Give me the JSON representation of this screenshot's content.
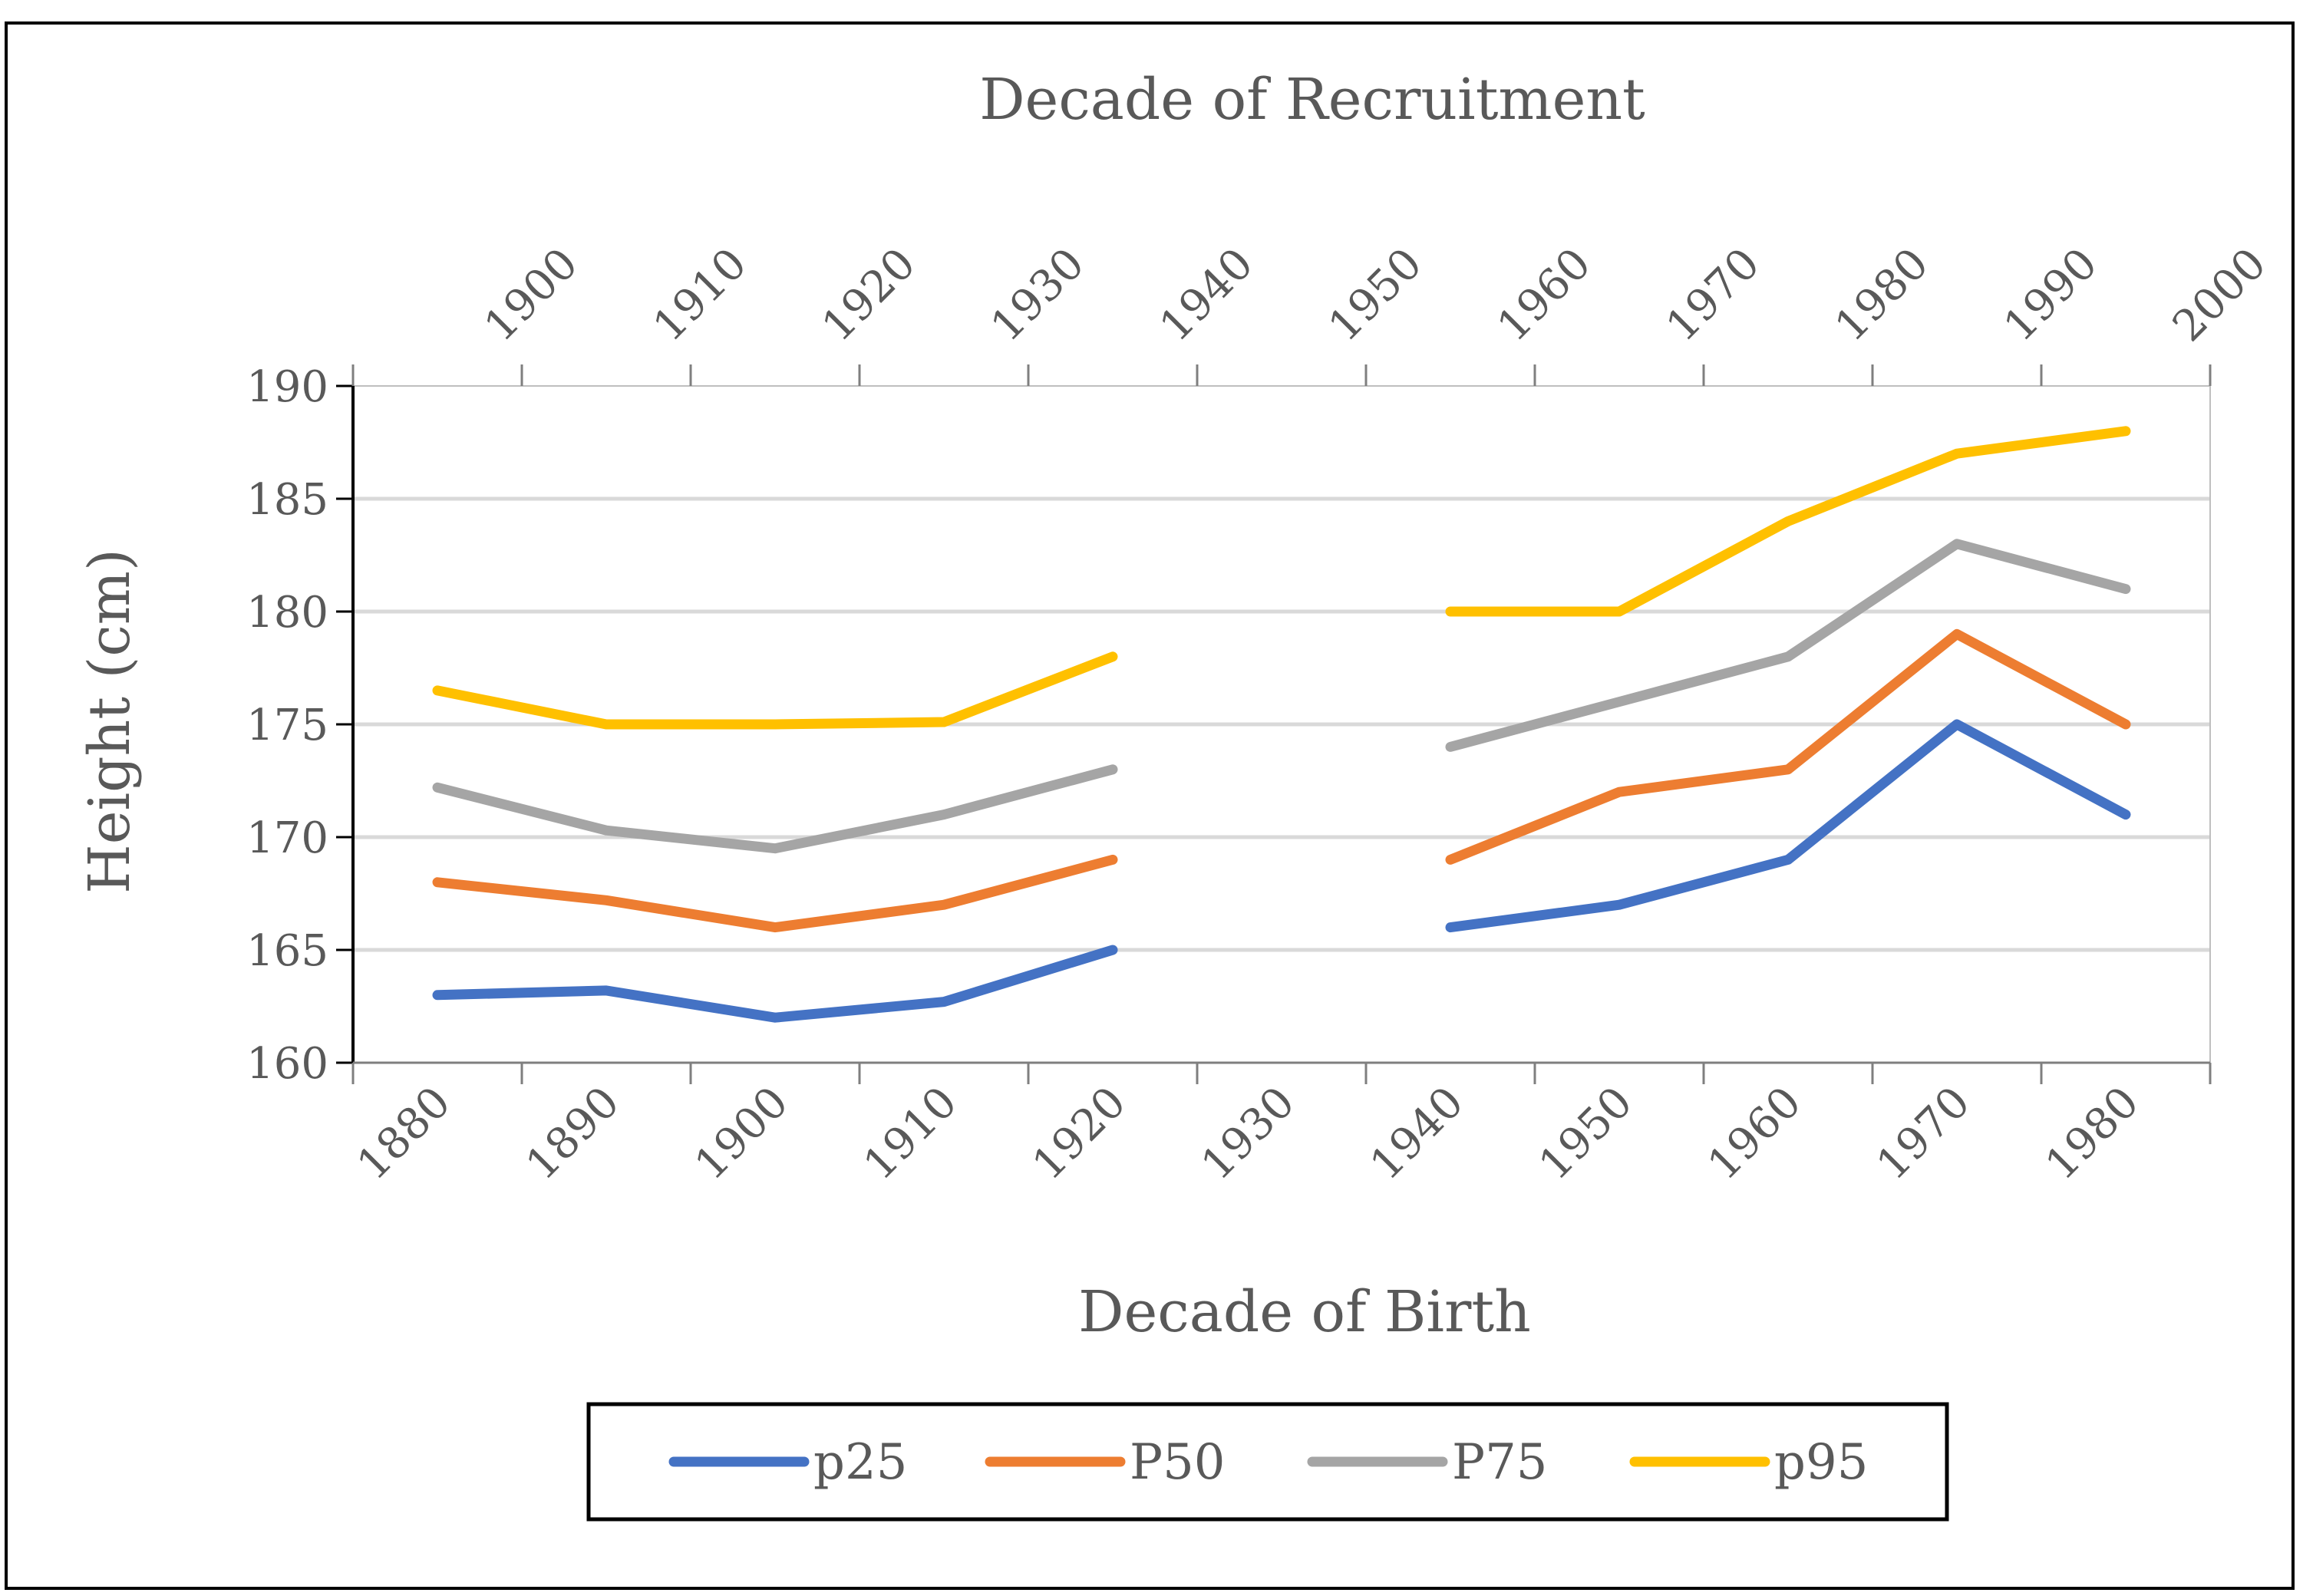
{
  "chart_data": {
    "type": "line",
    "title": "",
    "xlabel": "Decade of Birth",
    "x2label": "Decade of Recruitment",
    "ylabel": "Height (cm)",
    "ylim": [
      160,
      190
    ],
    "yticks": [
      160,
      165,
      170,
      175,
      180,
      185,
      190
    ],
    "categories": [
      "1880",
      "1890",
      "1900",
      "1910",
      "1920",
      "1930",
      "1940",
      "1950",
      "1960",
      "1970",
      "1980"
    ],
    "top_categories": [
      "1900",
      "1910",
      "1920",
      "1930",
      "1940",
      "1950",
      "1960",
      "1970",
      "1980",
      "1990",
      "2000"
    ],
    "grid": true,
    "legend_position": "bottom",
    "series": [
      {
        "name": "p25",
        "color": "#4472C4",
        "values": [
          163,
          163.2,
          162,
          162.7,
          165,
          null,
          166,
          167,
          169,
          175,
          171
        ]
      },
      {
        "name": "P50",
        "color": "#ED7D31",
        "values": [
          168,
          167.2,
          166,
          167,
          169,
          null,
          169,
          172,
          173,
          179,
          175
        ]
      },
      {
        "name": "P75",
        "color": "#A5A5A5",
        "values": [
          172.2,
          170.3,
          169.5,
          171,
          173,
          null,
          174,
          176,
          178,
          183,
          181
        ]
      },
      {
        "name": "p95",
        "color": "#FFC000",
        "values": [
          176.5,
          175,
          175,
          175.1,
          178,
          null,
          180,
          180,
          184,
          187,
          188
        ]
      }
    ]
  }
}
